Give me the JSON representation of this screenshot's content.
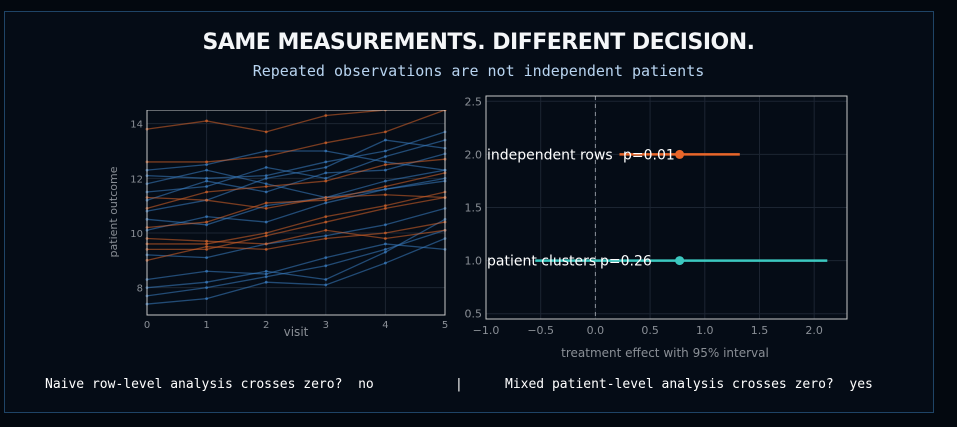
{
  "header": {
    "title": "SAME MEASUREMENTS.  DIFFERENT DECISION.",
    "subtitle": "Repeated observations are not independent patients"
  },
  "colors": {
    "blue": "#3a7fc4",
    "orange": "#d9652a",
    "teal": "#3cc8c0",
    "background": "#03080f",
    "panel": "#050c16",
    "frame": "#1f4466"
  },
  "chart_data": [
    {
      "type": "line",
      "xlabel": "visit",
      "ylabel": "patient outcome",
      "xlim": [
        0,
        5
      ],
      "ylim": [
        7,
        14.5
      ],
      "xticks": [
        "0",
        "1",
        "2",
        "3",
        "4",
        "5"
      ],
      "yticks": [
        "8",
        "10",
        "12",
        "14"
      ],
      "grid": true,
      "x": [
        0,
        1,
        2,
        3,
        4,
        5
      ],
      "series": [
        {
          "group": "blue",
          "values": [
            7.4,
            7.6,
            8.2,
            8.1,
            8.9,
            9.8
          ]
        },
        {
          "group": "blue",
          "values": [
            7.7,
            8.0,
            8.4,
            8.8,
            9.4,
            10.1
          ]
        },
        {
          "group": "blue",
          "values": [
            8.0,
            8.2,
            8.6,
            8.3,
            9.3,
            10.5
          ]
        },
        {
          "group": "blue",
          "values": [
            8.3,
            8.6,
            8.5,
            9.1,
            9.6,
            9.4
          ]
        },
        {
          "group": "blue",
          "values": [
            9.2,
            9.1,
            9.6,
            9.9,
            10.3,
            10.9
          ]
        },
        {
          "group": "blue",
          "values": [
            10.1,
            10.6,
            10.4,
            11.1,
            11.6,
            11.9
          ]
        },
        {
          "group": "blue",
          "values": [
            10.5,
            10.3,
            11.0,
            11.3,
            11.9,
            12.3
          ]
        },
        {
          "group": "blue",
          "values": [
            11.2,
            11.9,
            11.5,
            12.2,
            12.3,
            12.9
          ]
        },
        {
          "group": "blue",
          "values": [
            11.5,
            11.7,
            12.4,
            12.0,
            12.8,
            13.4
          ]
        },
        {
          "group": "blue",
          "values": [
            12.1,
            12.0,
            12.1,
            12.6,
            13.0,
            13.7
          ]
        },
        {
          "group": "blue",
          "values": [
            12.3,
            12.5,
            13.0,
            13.0,
            12.6,
            12.3
          ]
        },
        {
          "group": "blue",
          "values": [
            11.8,
            12.3,
            11.8,
            11.3,
            11.6,
            12.0
          ]
        },
        {
          "group": "blue",
          "values": [
            10.8,
            11.2,
            12.0,
            12.4,
            13.4,
            13.1
          ]
        },
        {
          "group": "orange",
          "values": [
            9.0,
            9.5,
            9.4,
            9.8,
            10.0,
            10.4
          ]
        },
        {
          "group": "orange",
          "values": [
            9.6,
            9.6,
            10.0,
            10.6,
            11.0,
            11.5
          ]
        },
        {
          "group": "orange",
          "values": [
            9.8,
            9.7,
            9.6,
            10.1,
            9.8,
            10.1
          ]
        },
        {
          "group": "orange",
          "values": [
            10.2,
            10.4,
            11.1,
            11.2,
            11.7,
            12.2
          ]
        },
        {
          "group": "orange",
          "values": [
            11.3,
            11.2,
            10.9,
            11.3,
            11.4,
            11.3
          ]
        },
        {
          "group": "orange",
          "values": [
            12.6,
            12.6,
            12.8,
            13.3,
            13.7,
            14.5
          ]
        },
        {
          "group": "orange",
          "values": [
            13.8,
            14.1,
            13.7,
            14.3,
            14.5,
            14.5
          ]
        },
        {
          "group": "orange",
          "values": [
            10.9,
            11.5,
            11.7,
            11.9,
            12.5,
            12.7
          ]
        },
        {
          "group": "orange",
          "values": [
            9.4,
            9.4,
            9.9,
            10.4,
            10.9,
            11.3
          ]
        }
      ]
    },
    {
      "type": "scatter",
      "xlabel": "treatment effect with 95% interval",
      "ylabel": "",
      "xlim": [
        -1.0,
        2.3
      ],
      "ylim": [
        0.45,
        2.55
      ],
      "xticks": [
        "−1.0",
        "−0.5",
        "0.0",
        "0.5",
        "1.0",
        "1.5",
        "2.0"
      ],
      "yticks": [
        "0.5",
        "1.0",
        "1.5",
        "2.0",
        "2.5"
      ],
      "grid": true,
      "reference_line": 0,
      "points": [
        {
          "y": 2.0,
          "estimate": 0.77,
          "ci_low": 0.22,
          "ci_high": 1.32,
          "color": "#e8662a",
          "label": "independent rows",
          "pvalue": "p=0.01"
        },
        {
          "y": 1.0,
          "estimate": 0.77,
          "ci_low": -0.55,
          "ci_high": 2.12,
          "color": "#3cc8c0",
          "label": "patient clusters",
          "pvalue": "p=0.26"
        }
      ]
    }
  ],
  "footer": {
    "left": "Naive row-level analysis crosses zero?  no",
    "divider": "|",
    "right": "Mixed patient-level analysis crosses zero?  yes"
  }
}
